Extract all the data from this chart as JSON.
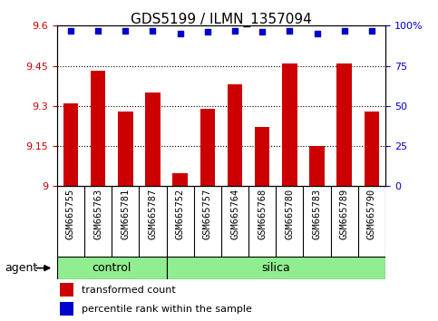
{
  "title": "GDS5199 / ILMN_1357094",
  "samples": [
    "GSM665755",
    "GSM665763",
    "GSM665781",
    "GSM665787",
    "GSM665752",
    "GSM665757",
    "GSM665764",
    "GSM665768",
    "GSM665780",
    "GSM665783",
    "GSM665789",
    "GSM665790"
  ],
  "n_control": 4,
  "n_silica": 8,
  "transformed_counts": [
    9.31,
    9.43,
    9.28,
    9.35,
    9.05,
    9.29,
    9.38,
    9.22,
    9.46,
    9.15,
    9.46,
    9.28
  ],
  "percentile_ranks": [
    97,
    97,
    97,
    97,
    95,
    96,
    97,
    96,
    97,
    95,
    97,
    97
  ],
  "ylim_left": [
    9.0,
    9.6
  ],
  "ylim_right": [
    0,
    100
  ],
  "yticks_left": [
    9.0,
    9.15,
    9.3,
    9.45,
    9.6
  ],
  "yticks_left_labels": [
    "9",
    "9.15",
    "9.3",
    "9.45",
    "9.6"
  ],
  "yticks_right": [
    0,
    25,
    50,
    75,
    100
  ],
  "yticks_right_labels": [
    "0",
    "25",
    "50",
    "75",
    "100%"
  ],
  "bar_color": "#cc0000",
  "dot_color": "#0000cc",
  "group_color": "#90ee90",
  "sample_bg_color": "#d3d3d3",
  "legend_bar": "transformed count",
  "legend_dot": "percentile rank within the sample",
  "agent_label": "agent"
}
